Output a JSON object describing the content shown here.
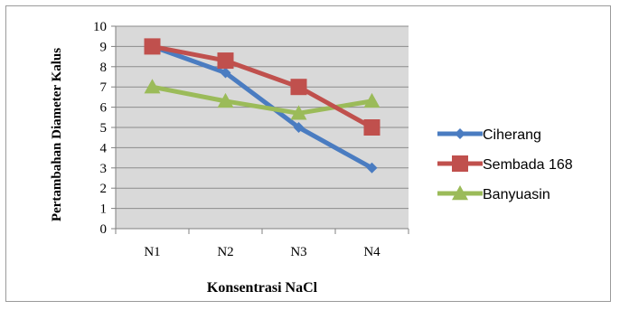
{
  "chart_data": {
    "type": "line",
    "title": "",
    "xlabel": "Konsentrasi NaCl",
    "ylabel": "Pertambahan Diameter Kalus",
    "categories": [
      "N1",
      "N2",
      "N3",
      "N4"
    ],
    "ylim": [
      0,
      10
    ],
    "yticks": [
      0,
      1,
      2,
      3,
      4,
      5,
      6,
      7,
      8,
      9,
      10
    ],
    "grid": true,
    "legend_position": "right",
    "series": [
      {
        "name": "Ciherang",
        "values": [
          9.0,
          7.7,
          5.0,
          3.0
        ],
        "color": "#4a7cc1",
        "marker": "diamond"
      },
      {
        "name": "Sembada 168",
        "values": [
          9.0,
          8.3,
          7.0,
          5.0
        ],
        "color": "#c0504d",
        "marker": "square"
      },
      {
        "name": "Banyuasin",
        "values": [
          7.0,
          6.3,
          5.7,
          6.3
        ],
        "color": "#9bbb59",
        "marker": "triangle"
      }
    ],
    "colors": {
      "plot_background": "#d9d9d9",
      "gridline": "#8c8c8c"
    }
  }
}
